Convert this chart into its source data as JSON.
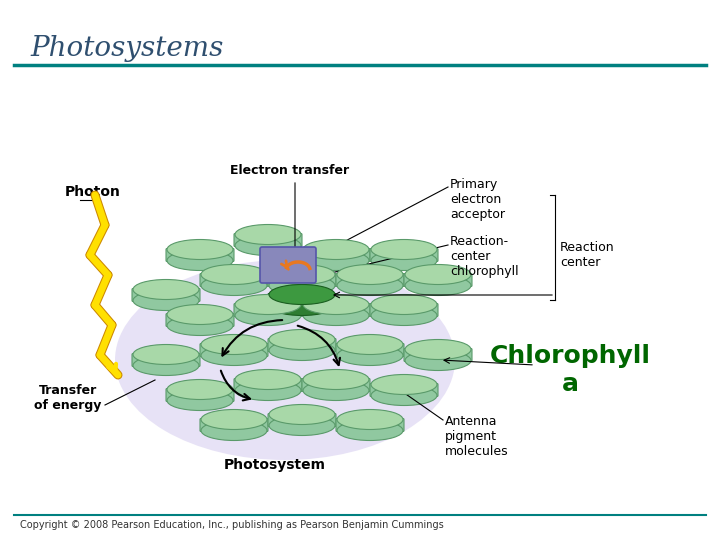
{
  "title": "Photosystems",
  "title_color": "#2F4F6F",
  "title_style": "italic",
  "bg_color": "#FFFFFF",
  "teal_line_color": "#008080",
  "copyright": "Copyright © 2008 Pearson Education, Inc., publishing as Pearson Benjamin Cummings",
  "labels": {
    "photon": "Photon",
    "electron_transfer": "Electron transfer",
    "primary_electron_acceptor": "Primary\nelectron\nacceptor",
    "reaction_center_chlorophyll": "Reaction-\ncenter\nchlorophyll",
    "reaction_center": "Reaction\ncenter",
    "transfer_of_energy": "Transfer\nof energy",
    "photosystem": "Photosystem",
    "antenna_pigment": "Antenna\npigment\nmolecules",
    "chlorophyll_a": "Chlorophyll\na"
  },
  "chlorophyll_color_light": "#90C8A0",
  "chlorophyll_color_dark": "#2E7D32",
  "chlorophyll_color_top": "#A8D8A8",
  "reaction_center_box_color": "#8888BB",
  "aura_color": "#D8D0F0",
  "arrow_color": "#222222",
  "orange_arrow_color": "#E87820",
  "photon_color": "#FFE000",
  "photon_outline": "#CC8800",
  "green_label_color": "#006600",
  "label_fontsize": 9,
  "title_fontsize": 20,
  "copyright_fontsize": 7
}
